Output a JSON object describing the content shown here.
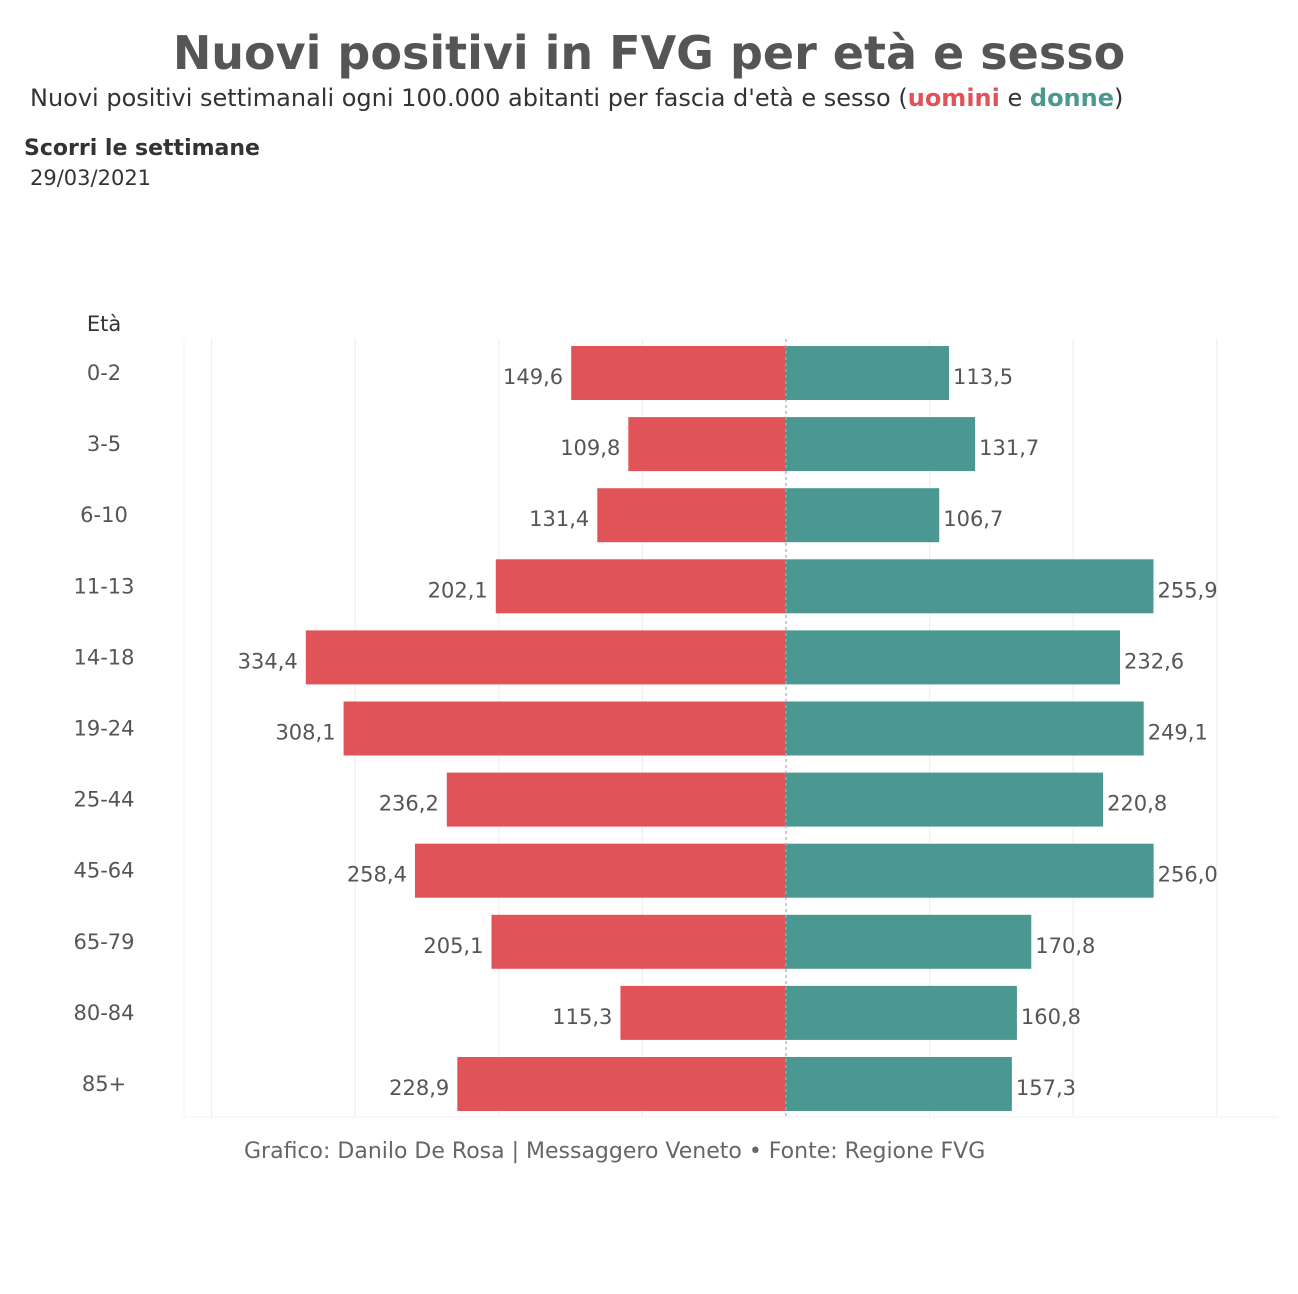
{
  "header": {
    "title": "Nuovi positivi in FVG per età e sesso",
    "subtitle_pre": "Nuovi positivi settimanali ogni 100.000 abitanti per fascia d'età e sesso (",
    "subtitle_men": "uomini",
    "subtitle_mid": " e ",
    "subtitle_women": "donne",
    "subtitle_post": ")"
  },
  "slider": {
    "label": "Scorri le settimane",
    "value": "29/03/2021"
  },
  "credit": "Grafico: Danilo De Rosa | Messaggero Veneto • Fonte: Regione FVG",
  "chart_data": {
    "type": "bar",
    "orientation": "horizontal-diverging",
    "y_axis_title": "Età",
    "categories": [
      "0-2",
      "3-5",
      "6-10",
      "11-13",
      "14-18",
      "19-24",
      "25-44",
      "45-64",
      "65-79",
      "80-84",
      "85+"
    ],
    "series": [
      {
        "name": "uomini",
        "color": "#e05459",
        "values": [
          149.6,
          109.8,
          131.4,
          202.1,
          334.4,
          308.1,
          236.2,
          258.4,
          205.1,
          115.3,
          228.9
        ],
        "labels": [
          "149,6",
          "109,8",
          "131,4",
          "202,1",
          "334,4",
          "308,1",
          "236,2",
          "258,4",
          "205,1",
          "115,3",
          "228,9"
        ]
      },
      {
        "name": "donne",
        "color": "#4a9891",
        "values": [
          113.5,
          131.7,
          106.7,
          255.9,
          232.6,
          249.1,
          220.8,
          256.0,
          170.8,
          160.8,
          157.3
        ],
        "labels": [
          "113,5",
          "131,7",
          "106,7",
          "255,9",
          "232,6",
          "249,1",
          "220,8",
          "256,0",
          "170,8",
          "160,8",
          "157,3"
        ]
      }
    ],
    "x_range": [
      -400,
      300
    ],
    "gridlines": [
      -400,
      -300,
      -200,
      -100,
      0,
      100,
      200,
      300
    ],
    "grid": true
  }
}
